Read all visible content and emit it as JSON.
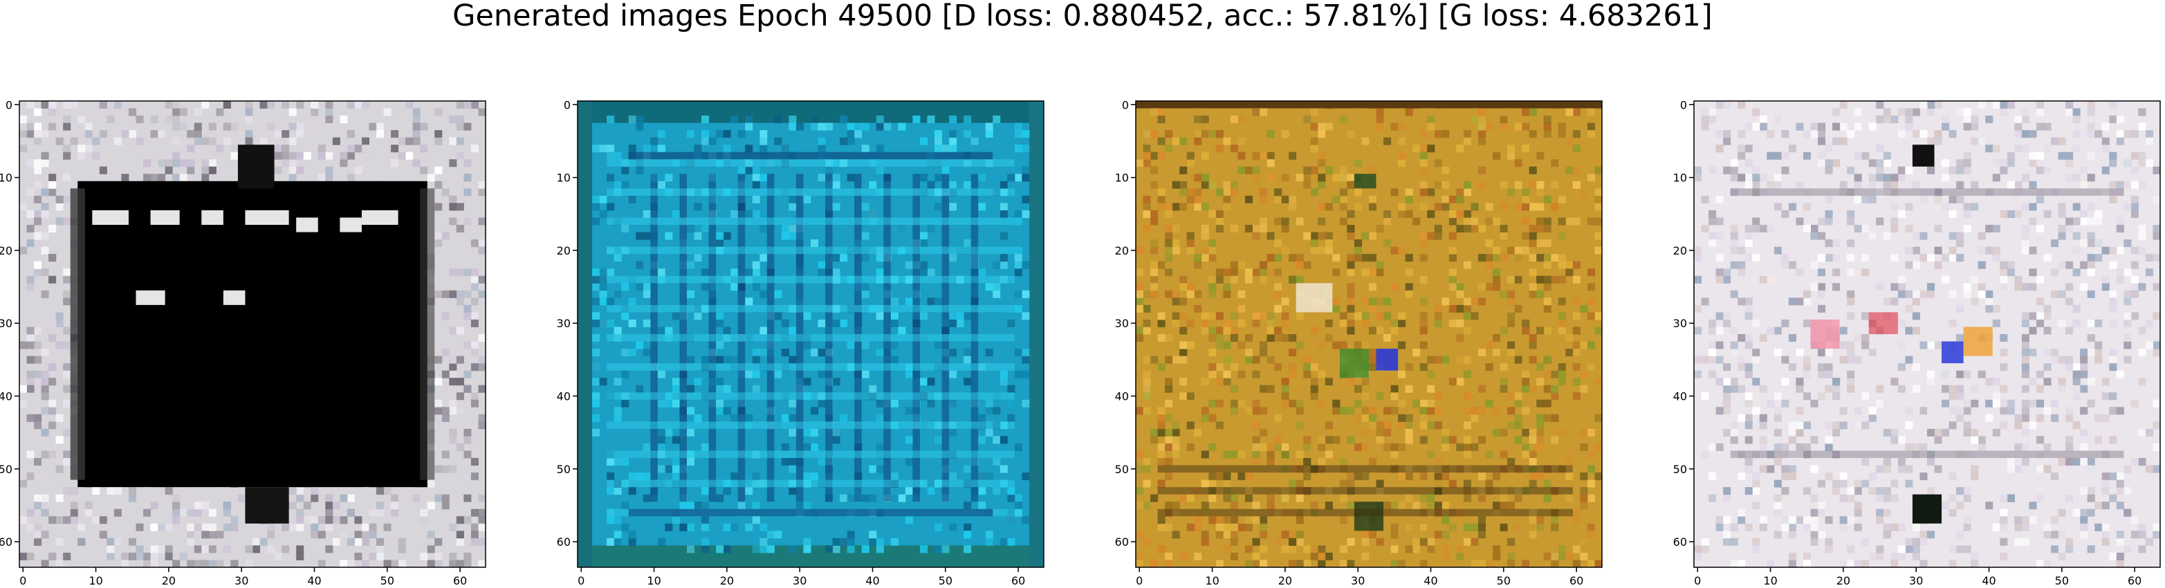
{
  "figure": {
    "title": "Generated images Epoch 49500 [D loss: 0.880452, acc.: 57.81%] [G loss: 4.683261]"
  },
  "axes": {
    "x_ticks": [
      "0",
      "10",
      "20",
      "30",
      "40",
      "50",
      "60"
    ],
    "y_ticks": [
      "0",
      "10",
      "20",
      "30",
      "40",
      "50",
      "60"
    ],
    "pixel_range": [
      -0.5,
      63.5
    ]
  },
  "panels": [
    {
      "name": "generated-image-1",
      "scene": "black square window with white-grey noisy border and bright speckles in upper area"
    },
    {
      "name": "generated-image-2",
      "scene": "cyan and teal grid pattern with dark blue vertical streaks"
    },
    {
      "name": "generated-image-3",
      "scene": "ochre and orange noisy texture with green and blue blotches"
    },
    {
      "name": "generated-image-4",
      "scene": "mostly white noisy frame with colorful red, blue and orange spots"
    }
  ],
  "colors": {
    "frame": "#000000",
    "panel1_bg": "#d9d6db",
    "panel1_window": "#000000",
    "panel2_bg": "#1b9fc4",
    "panel3_bg": "#c89a30",
    "panel4_bg": "#ebe6ec"
  }
}
